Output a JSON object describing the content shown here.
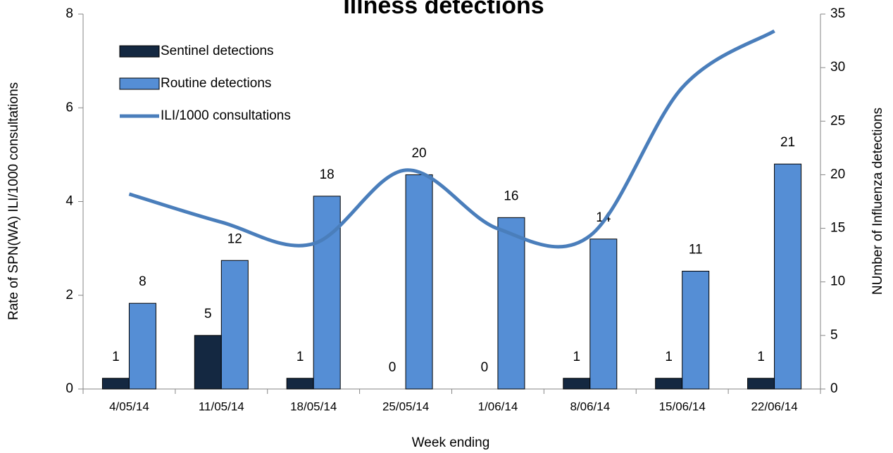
{
  "chart_data": {
    "type": "bar_line",
    "title": "Illness detections",
    "xlabel": "Week ending",
    "ylabel": "Rate of SPN(WA) ILI/1000 consultations",
    "y2label": "NUmber of Influenza detections",
    "categories": [
      "4/05/14",
      "11/05/14",
      "18/05/14",
      "25/05/14",
      "1/06/14",
      "8/06/14",
      "15/06/14",
      "22/06/14"
    ],
    "series": [
      {
        "name": "Sentinel detections",
        "type": "bar",
        "axis": "y2",
        "color": "#142841",
        "values": [
          1,
          5,
          1,
          0,
          0,
          1,
          1,
          1
        ]
      },
      {
        "name": "Routine detections",
        "type": "bar",
        "axis": "y2",
        "color": "#558ed5",
        "values": [
          8,
          12,
          18,
          20,
          16,
          14,
          11,
          21
        ]
      },
      {
        "name": "ILI/1000 consultations",
        "type": "line",
        "axis": "y",
        "color": "#4a7ebb",
        "values": [
          4.16,
          3.56,
          3.1,
          4.67,
          3.42,
          3.27,
          6.43,
          7.64
        ]
      }
    ],
    "ylim": [
      0,
      8
    ],
    "yticks": [
      0,
      2,
      4,
      6,
      8
    ],
    "y2lim": [
      0,
      35
    ],
    "y2ticks": [
      0,
      5,
      10,
      15,
      20,
      25,
      30,
      35
    ],
    "legend": "upper left"
  }
}
